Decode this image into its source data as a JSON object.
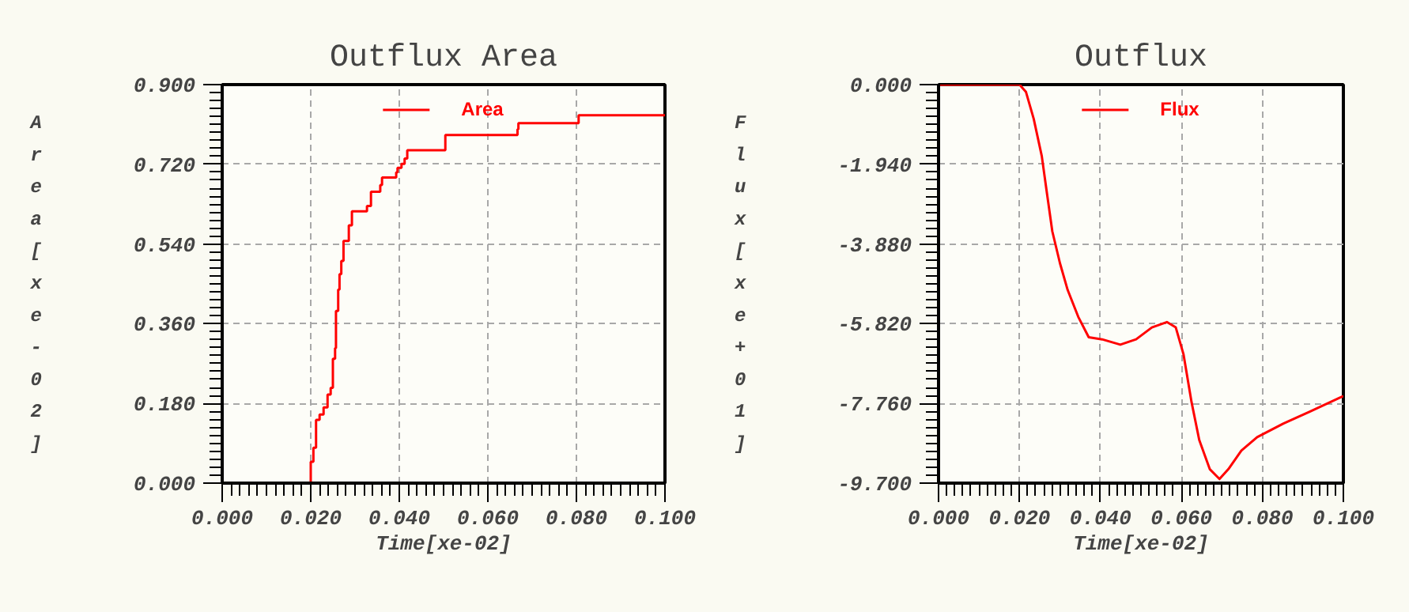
{
  "chart_data": [
    {
      "type": "step",
      "title": "Outflux Area",
      "xlabel": "Time[xe-02]",
      "ylabel": "Area[xe-02]",
      "xlim": [
        0,
        0.1
      ],
      "ylim": [
        0,
        0.9
      ],
      "xticks": [
        {
          "value": 0,
          "label": "0.000"
        },
        {
          "value": 0.02,
          "label": "0.020"
        },
        {
          "value": 0.04,
          "label": "0.040"
        },
        {
          "value": 0.06,
          "label": "0.060"
        },
        {
          "value": 0.08,
          "label": "0.080"
        },
        {
          "value": 0.1,
          "label": "0.100"
        }
      ],
      "yticks": [
        {
          "value": 0,
          "label": "0.000"
        },
        {
          "value": 0.18,
          "label": "0.180"
        },
        {
          "value": 0.36,
          "label": "0.360"
        },
        {
          "value": 0.54,
          "label": "0.540"
        },
        {
          "value": 0.72,
          "label": "0.720"
        },
        {
          "value": 0.9,
          "label": "0.900"
        }
      ],
      "grid": true,
      "legend": "top",
      "series": [
        {
          "name": "Area",
          "color": "#ff0000",
          "x": [
            0,
            0.02,
            0.0206,
            0.0212,
            0.022,
            0.0229,
            0.0238,
            0.0245,
            0.025,
            0.0255,
            0.0257,
            0.0262,
            0.0265,
            0.0269,
            0.0274,
            0.0286,
            0.0293,
            0.0327,
            0.0336,
            0.0357,
            0.0361,
            0.0393,
            0.0396,
            0.0405,
            0.0412,
            0.0418,
            0.0504,
            0.0667,
            0.0669,
            0.0805,
            0.1
          ],
          "values": [
            0,
            0.048,
            0.08,
            0.143,
            0.155,
            0.171,
            0.2,
            0.215,
            0.281,
            0.305,
            0.389,
            0.437,
            0.472,
            0.502,
            0.547,
            0.582,
            0.614,
            0.626,
            0.658,
            0.673,
            0.69,
            0.702,
            0.712,
            0.721,
            0.733,
            0.752,
            0.786,
            0.799,
            0.813,
            0.831,
            0.831
          ]
        }
      ]
    },
    {
      "type": "line",
      "title": "Outflux",
      "xlabel": "Time[xe-02]",
      "ylabel": "Flux[xe+01]",
      "xlim": [
        0,
        0.1
      ],
      "ylim": [
        -9.7,
        0
      ],
      "xticks": [
        {
          "value": 0,
          "label": "0.000"
        },
        {
          "value": 0.02,
          "label": "0.020"
        },
        {
          "value": 0.04,
          "label": "0.040"
        },
        {
          "value": 0.06,
          "label": "0.060"
        },
        {
          "value": 0.08,
          "label": "0.080"
        },
        {
          "value": 0.1,
          "label": "0.100"
        }
      ],
      "yticks": [
        {
          "value": 0,
          "label": "0.000"
        },
        {
          "value": -1.94,
          "label": "-1.940"
        },
        {
          "value": -3.88,
          "label": "-3.880"
        },
        {
          "value": -5.82,
          "label": "-5.820"
        },
        {
          "value": -7.76,
          "label": "-7.760"
        },
        {
          "value": -9.7,
          "label": "-9.700"
        }
      ],
      "grid": true,
      "legend": "top",
      "series": [
        {
          "name": "Flux",
          "color": "#ff0000",
          "x": [
            0,
            0.02,
            0.0216,
            0.0235,
            0.0255,
            0.0268,
            0.0281,
            0.03,
            0.0319,
            0.0345,
            0.0371,
            0.0404,
            0.0449,
            0.0488,
            0.0527,
            0.0564,
            0.0586,
            0.0605,
            0.0625,
            0.0644,
            0.067,
            0.0694,
            0.0716,
            0.0748,
            0.0787,
            0.0852,
            0.0917,
            0.1
          ],
          "values": [
            0,
            0,
            -0.18,
            -0.83,
            -1.74,
            -2.66,
            -3.57,
            -4.35,
            -5.0,
            -5.65,
            -6.15,
            -6.2,
            -6.33,
            -6.2,
            -5.91,
            -5.78,
            -5.91,
            -6.56,
            -7.73,
            -8.65,
            -9.36,
            -9.6,
            -9.36,
            -8.91,
            -8.58,
            -8.25,
            -7.96,
            -7.58
          ]
        }
      ]
    }
  ]
}
